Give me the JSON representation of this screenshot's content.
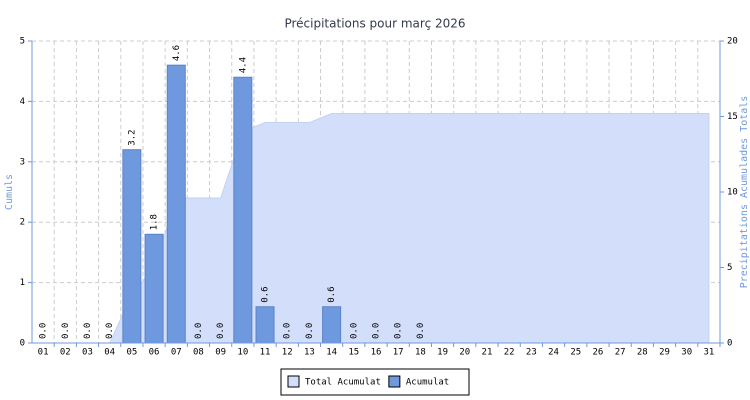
{
  "chart_data": {
    "type": "bar",
    "title": "Précipitations pour març 2026",
    "y_label": "Cumuls",
    "y2_label": "Precipitations Acumulades Totals",
    "categories": [
      "01",
      "02",
      "03",
      "04",
      "05",
      "06",
      "07",
      "08",
      "09",
      "10",
      "11",
      "12",
      "13",
      "14",
      "15",
      "16",
      "17",
      "18",
      "19",
      "20",
      "21",
      "22",
      "23",
      "24",
      "25",
      "26",
      "27",
      "28",
      "29",
      "30",
      "31"
    ],
    "series": [
      {
        "name": "Total Acumulat",
        "type": "area",
        "axis": "y2",
        "color": "#d3dffa",
        "values": [
          0,
          0,
          0,
          0,
          3.2,
          5.0,
          9.6,
          9.6,
          9.6,
          14.0,
          14.6,
          14.6,
          14.6,
          15.2,
          15.2,
          15.2,
          15.2,
          15.2,
          15.2,
          15.2,
          15.2,
          15.2,
          15.2,
          15.2,
          15.2,
          15.2,
          15.2,
          15.2,
          15.2,
          15.2,
          15.2
        ]
      },
      {
        "name": "Acumulat",
        "type": "bar",
        "color": "#6f99de",
        "values": [
          0,
          0,
          0,
          0,
          3.2,
          1.8,
          4.6,
          0,
          0,
          4.4,
          0.6,
          0,
          0,
          0.6,
          0,
          0,
          0,
          0,
          null,
          null,
          null,
          null,
          null,
          null,
          null,
          null,
          null,
          null,
          null,
          null,
          null
        ],
        "value_labels": [
          "0.0",
          "0.0",
          "0.0",
          "0.0",
          "3.2",
          "1.8",
          "4.6",
          "0.0",
          "0.0",
          "4.4",
          "0.6",
          "0.0",
          "0.0",
          "0.6",
          "0.0",
          "0.0",
          "0.0",
          "0.0",
          null,
          null,
          null,
          null,
          null,
          null,
          null,
          null,
          null,
          null,
          null,
          null,
          null
        ]
      }
    ],
    "ylim": [
      0,
      5
    ],
    "yticks": [
      0,
      1,
      2,
      3,
      4,
      5
    ],
    "y2lim": [
      0,
      20
    ],
    "y2ticks": [
      0,
      5,
      10,
      15,
      20
    ],
    "grid": true,
    "legend": "bottom"
  }
}
